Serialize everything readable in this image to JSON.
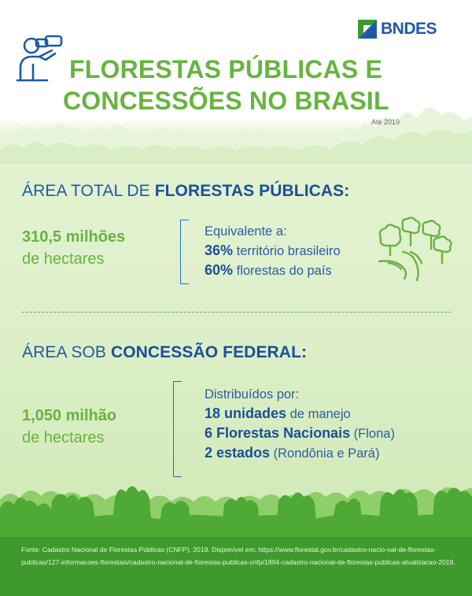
{
  "brand": {
    "name": "BNDES"
  },
  "header": {
    "title_line1": "FLORESTAS PÚBLICAS E",
    "title_line2": "CONCESSÕES NO BRASIL",
    "year_note": "Até 2019"
  },
  "section1": {
    "heading_prefix": "ÁREA TOTAL DE ",
    "heading_bold": "FLORESTAS PÚBLICAS:",
    "big_number": "310,5 milhões",
    "big_unit": "de hectares",
    "list_intro": "Equivalente a:",
    "items": [
      {
        "bold": "36%",
        "text": " território brasileiro"
      },
      {
        "bold": "60%",
        "text": " florestas do país"
      }
    ]
  },
  "section2": {
    "heading_prefix": "ÁREA SOB ",
    "heading_bold": "CONCESSÃO FEDERAL:",
    "big_number": "1,050 milhão",
    "big_unit": "de hectares",
    "list_intro": "Distribuídos por:",
    "items": [
      {
        "bold": "18 unidades",
        "text": " de manejo"
      },
      {
        "bold": "6 Florestas Nacionais",
        "text": " (Flona)"
      },
      {
        "bold": "2 estados",
        "text": " (Rondônia e Pará)"
      }
    ]
  },
  "footer": {
    "source": "Fonte: Cadastro Nacional de Florestas Públicas (CNFP), 2019. Disponível em: https://www.florestal.gov.br/cadastro-nacio-nal-de-florestas-publicas/127-informacoes-florestais/cadastro-nacional-de-florestas-publicas-cnfp/1894-cadastro-nacional-de-florestas-publicas-atualizacao-2019."
  },
  "icons": {
    "logo": "bndes-logo-icon",
    "person": "binoculars-person-icon",
    "trees": "trees-icon"
  },
  "colors": {
    "green": "#67b43f",
    "blue": "#1e5aa6",
    "footer_green": "#3f9a2e",
    "light_green": "#dff0cb"
  }
}
